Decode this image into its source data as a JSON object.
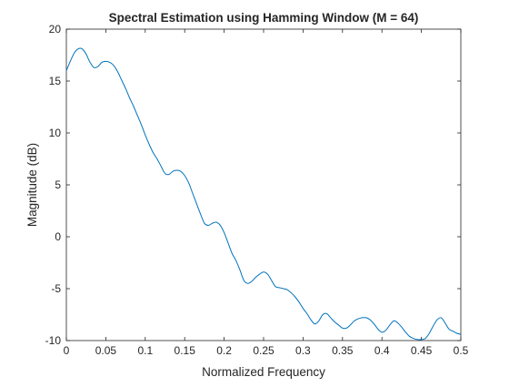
{
  "chart_data": {
    "type": "line",
    "title": "Spectral Estimation using Hamming Window (M = 64)",
    "xlabel": "Normalized Frequency",
    "ylabel": "Magnitude (dB)",
    "xlim": [
      0,
      0.5
    ],
    "ylim": [
      -10,
      20
    ],
    "xticks": [
      0,
      0.05,
      0.1,
      0.15,
      0.2,
      0.25,
      0.3,
      0.35,
      0.4,
      0.45,
      0.5
    ],
    "xtick_labels": [
      "0",
      "0.05",
      "0.1",
      "0.15",
      "0.2",
      "0.25",
      "0.3",
      "0.35",
      "0.4",
      "0.45",
      "0.5"
    ],
    "yticks": [
      -10,
      -5,
      0,
      5,
      10,
      15,
      20
    ],
    "ytick_labels": [
      "-10",
      "-5",
      "0",
      "5",
      "10",
      "15",
      "20"
    ],
    "grid": false,
    "series": [
      {
        "color": "#0072bd",
        "x": [
          0,
          0.005,
          0.01,
          0.015,
          0.02,
          0.025,
          0.03,
          0.035,
          0.04,
          0.045,
          0.05,
          0.055,
          0.06,
          0.065,
          0.07,
          0.075,
          0.08,
          0.085,
          0.09,
          0.095,
          0.1,
          0.105,
          0.11,
          0.115,
          0.12,
          0.125,
          0.13,
          0.135,
          0.14,
          0.145,
          0.15,
          0.155,
          0.16,
          0.165,
          0.17,
          0.175,
          0.18,
          0.185,
          0.19,
          0.195,
          0.2,
          0.205,
          0.21,
          0.215,
          0.22,
          0.225,
          0.23,
          0.235,
          0.24,
          0.245,
          0.25,
          0.255,
          0.26,
          0.265,
          0.27,
          0.275,
          0.28,
          0.285,
          0.29,
          0.295,
          0.3,
          0.305,
          0.31,
          0.315,
          0.32,
          0.325,
          0.33,
          0.335,
          0.34,
          0.345,
          0.35,
          0.355,
          0.36,
          0.365,
          0.37,
          0.375,
          0.38,
          0.385,
          0.39,
          0.395,
          0.4,
          0.405,
          0.41,
          0.415,
          0.42,
          0.425,
          0.43,
          0.435,
          0.44,
          0.445,
          0.45,
          0.455,
          0.46,
          0.465,
          0.47,
          0.475,
          0.48,
          0.485,
          0.49,
          0.495,
          0.5
        ],
        "y": [
          16.0,
          16.9,
          17.7,
          18.1,
          18.1,
          17.6,
          16.8,
          16.3,
          16.4,
          16.8,
          16.9,
          16.8,
          16.5,
          15.9,
          15.1,
          14.3,
          13.4,
          12.6,
          11.7,
          10.8,
          9.8,
          8.9,
          8.1,
          7.5,
          6.8,
          6.1,
          6.0,
          6.3,
          6.4,
          6.3,
          5.9,
          5.2,
          4.2,
          3.2,
          2.2,
          1.3,
          1.1,
          1.3,
          1.4,
          1.1,
          0.4,
          -0.6,
          -1.6,
          -2.3,
          -3.2,
          -4.2,
          -4.5,
          -4.3,
          -3.9,
          -3.6,
          -3.4,
          -3.6,
          -4.2,
          -4.8,
          -4.9,
          -5.0,
          -5.1,
          -5.4,
          -5.8,
          -6.3,
          -6.9,
          -7.4,
          -8.0,
          -8.4,
          -8.1,
          -7.5,
          -7.4,
          -7.8,
          -8.2,
          -8.5,
          -8.8,
          -8.8,
          -8.5,
          -8.1,
          -7.9,
          -7.8,
          -7.8,
          -8.0,
          -8.4,
          -8.9,
          -9.2,
          -9.0,
          -8.5,
          -8.1,
          -8.3,
          -8.7,
          -9.2,
          -9.6,
          -9.8,
          -9.9,
          -9.9,
          -9.8,
          -9.3,
          -8.6,
          -8.0,
          -7.8,
          -8.3,
          -8.9,
          -9.1,
          -9.3,
          -9.4
        ]
      }
    ]
  }
}
